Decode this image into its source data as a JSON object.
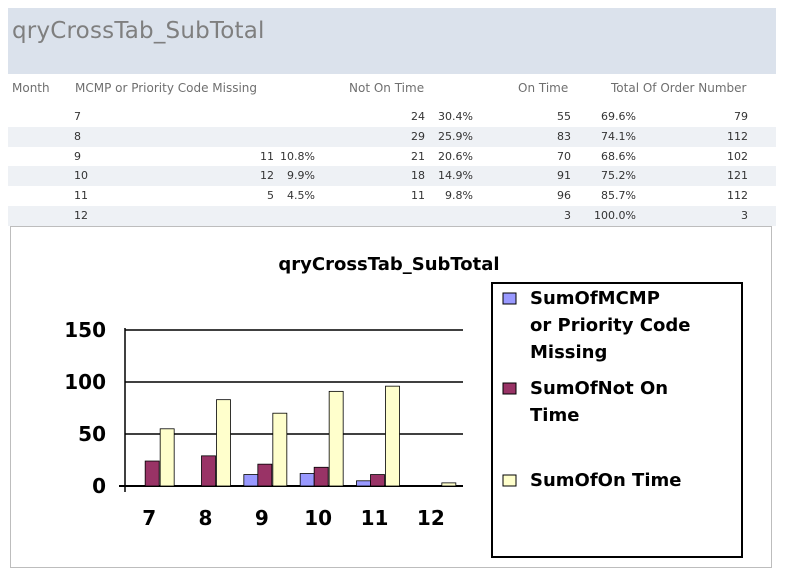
{
  "report": {
    "title": "qryCrossTab_SubTotal",
    "columns": {
      "month": "Month",
      "mcmp": "MCMP or Priority Code Missing",
      "not_on_time": "Not On Time",
      "on_time": "On Time",
      "total": "Total Of Order Number"
    },
    "rows": [
      {
        "month": "7",
        "mcmp": "",
        "mcmp_pct": "",
        "not": "24",
        "not_pct": "30.4%",
        "on": "55",
        "on_pct": "69.6%",
        "total": "79"
      },
      {
        "month": "8",
        "mcmp": "",
        "mcmp_pct": "",
        "not": "29",
        "not_pct": "25.9%",
        "on": "83",
        "on_pct": "74.1%",
        "total": "112"
      },
      {
        "month": "9",
        "mcmp": "11",
        "mcmp_pct": "10.8%",
        "not": "21",
        "not_pct": "20.6%",
        "on": "70",
        "on_pct": "68.6%",
        "total": "102"
      },
      {
        "month": "10",
        "mcmp": "12",
        "mcmp_pct": "9.9%",
        "not": "18",
        "not_pct": "14.9%",
        "on": "91",
        "on_pct": "75.2%",
        "total": "121"
      },
      {
        "month": "11",
        "mcmp": "5",
        "mcmp_pct": "4.5%",
        "not": "11",
        "not_pct": "9.8%",
        "on": "96",
        "on_pct": "85.7%",
        "total": "112"
      },
      {
        "month": "12",
        "mcmp": "",
        "mcmp_pct": "",
        "not": "",
        "not_pct": "",
        "on": "3",
        "on_pct": "100.0%",
        "total": "3"
      }
    ]
  },
  "chart_data": {
    "type": "bar",
    "title": "qryCrossTab_SubTotal",
    "categories": [
      "7",
      "8",
      "9",
      "10",
      "11",
      "12"
    ],
    "series": [
      {
        "name": "SumOfMCMP or Priority Code Missing",
        "values": [
          0,
          0,
          11,
          12,
          5,
          0
        ],
        "color": "#9999ff"
      },
      {
        "name": "SumOfNot On Time",
        "values": [
          24,
          29,
          21,
          18,
          11,
          0
        ],
        "color": "#993366"
      },
      {
        "name": "SumOfOn Time",
        "values": [
          55,
          83,
          70,
          91,
          96,
          3
        ],
        "color": "#ffffcc"
      }
    ],
    "ylim": [
      0,
      150
    ],
    "yticks": [
      "0",
      "50",
      "100",
      "150"
    ],
    "xlabel": "",
    "ylabel": "",
    "grid": true,
    "legend": "right",
    "legend_lines": [
      [
        "SumOfMCMP",
        "or Priority Code",
        "Missing"
      ],
      [
        "SumOfNot On",
        "Time"
      ],
      [
        "SumOfOn Time"
      ]
    ]
  }
}
